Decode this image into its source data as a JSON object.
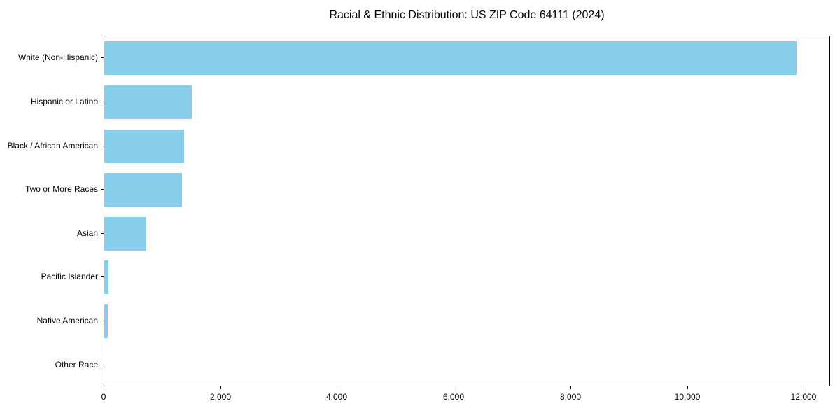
{
  "chart_data": {
    "type": "bar",
    "orientation": "horizontal",
    "title": "Racial & Ethnic Distribution: US ZIP Code 64111 (2024)",
    "categories": [
      "White (Non-Hispanic)",
      "Hispanic or Latino",
      "Black / African American",
      "Two or More Races",
      "Asian",
      "Pacific Islander",
      "Native American",
      "Other Race"
    ],
    "values": [
      11860,
      1500,
      1370,
      1330,
      715,
      70,
      55,
      0
    ],
    "xlabel": "",
    "ylabel": "",
    "xlim": [
      0,
      12453
    ],
    "x_ticks": [
      0,
      2000,
      4000,
      6000,
      8000,
      10000,
      12000
    ],
    "x_tick_labels": [
      "0",
      "2,000",
      "4,000",
      "6,000",
      "8,000",
      "10,000",
      "12,000"
    ],
    "bar_color": "#87CEEB",
    "axis_color": "#000000",
    "background_color": "#ffffff",
    "grid": false,
    "legend": null
  }
}
